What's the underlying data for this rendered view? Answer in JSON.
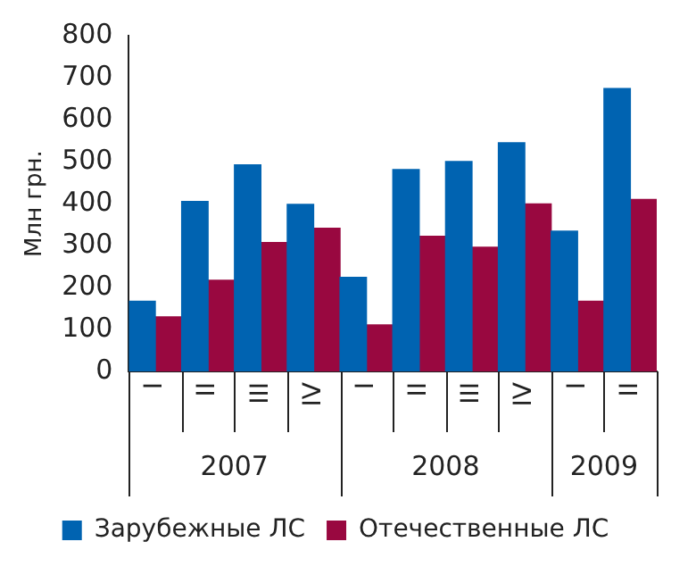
{
  "chart_data": {
    "type": "bar",
    "ylabel": "Млн грн.",
    "categories": [
      "I",
      "II",
      "III",
      "IV",
      "I",
      "II",
      "III",
      "IV",
      "I",
      "II"
    ],
    "annotations": [
      "2007",
      "2008",
      "2009"
    ],
    "series": [
      {
        "name": "Зарубежные ЛС",
        "color": "#0063b1",
        "values": [
          167,
          405,
          492,
          398,
          224,
          481,
          500,
          545,
          334,
          674
        ]
      },
      {
        "name": "Отечественные ЛС",
        "color": "#990840",
        "values": [
          130,
          217,
          307,
          341,
          111,
          322,
          296,
          399,
          167,
          410
        ]
      }
    ],
    "ylim": [
      0,
      800
    ],
    "yticks": [
      0,
      100,
      200,
      300,
      400,
      500,
      600,
      700,
      800
    ],
    "grid": false,
    "legend": "bottom"
  }
}
